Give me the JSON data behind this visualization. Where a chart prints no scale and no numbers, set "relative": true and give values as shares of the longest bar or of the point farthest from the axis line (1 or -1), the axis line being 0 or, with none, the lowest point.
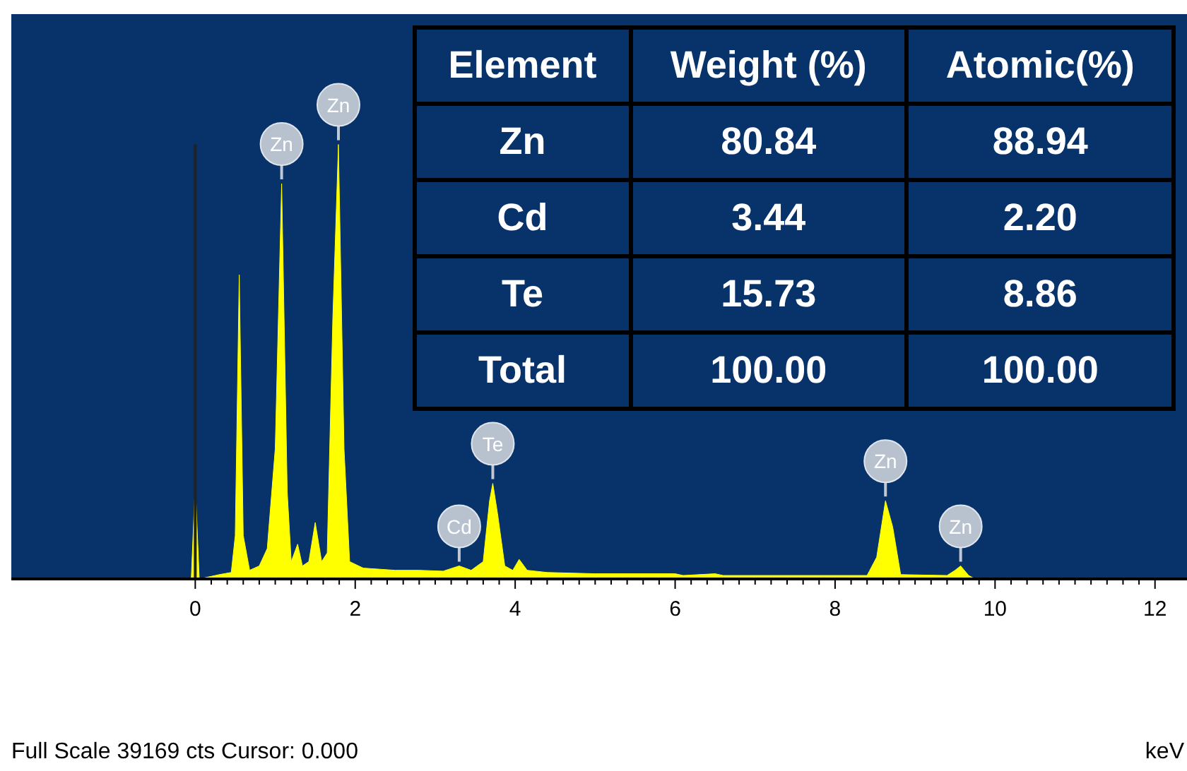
{
  "chart_data": [
    {
      "type": "area",
      "relative": true,
      "xlabel": "keV",
      "x": [
        -0.05,
        0,
        0.05,
        0.3,
        0.45,
        0.5,
        0.55,
        0.6,
        0.68,
        0.8,
        0.9,
        1.0,
        1.08,
        1.15,
        1.2,
        1.28,
        1.34,
        1.42,
        1.5,
        1.58,
        1.65,
        1.72,
        1.79,
        1.86,
        1.93,
        2.1,
        2.5,
        2.8,
        3.1,
        3.3,
        3.45,
        3.6,
        3.68,
        3.72,
        3.78,
        3.87,
        3.97,
        4.05,
        4.15,
        4.4,
        5.0,
        6.0,
        6.1,
        6.5,
        6.6,
        8.4,
        8.52,
        8.63,
        8.72,
        8.82,
        9.4,
        9.5,
        9.57,
        9.67,
        9.75
      ],
      "series": [
        {
          "color": "#ffff00",
          "values": [
            0,
            0.22,
            0,
            0.01,
            0.015,
            0.1,
            0.7,
            0.1,
            0.02,
            0.03,
            0.07,
            0.3,
            0.91,
            0.2,
            0.04,
            0.08,
            0.03,
            0.04,
            0.13,
            0.04,
            0.06,
            0.6,
            1.0,
            0.3,
            0.04,
            0.025,
            0.02,
            0.02,
            0.018,
            0.03,
            0.02,
            0.04,
            0.18,
            0.22,
            0.15,
            0.03,
            0.02,
            0.045,
            0.02,
            0.015,
            0.012,
            0.012,
            0.008,
            0.012,
            0.008,
            0.008,
            0.05,
            0.18,
            0.12,
            0.01,
            0.008,
            0.02,
            0.03,
            0.008,
            0
          ]
        }
      ],
      "xlim": [
        -2.3,
        12.4
      ],
      "xticks": [
        0,
        {
          "value": 0.2,
          "label": null
        },
        {
          "value": 0.4,
          "label": null
        },
        {
          "value": 0.6,
          "label": null
        },
        {
          "value": 0.8,
          "label": null
        },
        {
          "value": 1,
          "label": null
        },
        {
          "value": 1.2,
          "label": null
        },
        {
          "value": 1.4,
          "label": null
        },
        {
          "value": 1.6,
          "label": null
        },
        {
          "value": 1.8,
          "label": null
        },
        2,
        {
          "value": 2.2,
          "label": null
        },
        {
          "value": 2.4,
          "label": null
        },
        {
          "value": 2.6,
          "label": null
        },
        {
          "value": 2.8,
          "label": null
        },
        {
          "value": 3,
          "label": null
        },
        {
          "value": 3.2,
          "label": null
        },
        {
          "value": 3.4,
          "label": null
        },
        {
          "value": 3.6,
          "label": null
        },
        {
          "value": 3.8,
          "label": null
        },
        4,
        {
          "value": 4.2,
          "label": null
        },
        {
          "value": 4.4,
          "label": null
        },
        {
          "value": 4.6,
          "label": null
        },
        {
          "value": 4.8,
          "label": null
        },
        {
          "value": 5,
          "label": null
        },
        {
          "value": 5.2,
          "label": null
        },
        {
          "value": 5.4,
          "label": null
        },
        {
          "value": 5.6,
          "label": null
        },
        {
          "value": 5.8,
          "label": null
        },
        6,
        {
          "value": 6.2,
          "label": null
        },
        {
          "value": 6.4,
          "label": null
        },
        {
          "value": 6.6,
          "label": null
        },
        {
          "value": 6.8,
          "label": null
        },
        {
          "value": 7,
          "label": null
        },
        {
          "value": 7.2,
          "label": null
        },
        {
          "value": 7.4,
          "label": null
        },
        {
          "value": 7.6,
          "label": null
        },
        {
          "value": 7.8,
          "label": null
        },
        8,
        {
          "value": 8.2,
          "label": null
        },
        {
          "value": 8.4,
          "label": null
        },
        {
          "value": 8.6,
          "label": null
        },
        {
          "value": 8.8,
          "label": null
        },
        {
          "value": 9,
          "label": null
        },
        {
          "value": 9.2,
          "label": null
        },
        {
          "value": 9.4,
          "label": null
        },
        {
          "value": 9.6,
          "label": null
        },
        {
          "value": 9.8,
          "label": null
        },
        10,
        {
          "value": 10.2,
          "label": null
        },
        {
          "value": 10.4,
          "label": null
        },
        {
          "value": 10.6,
          "label": null
        },
        {
          "value": 10.8,
          "label": null
        },
        {
          "value": 11,
          "label": null
        },
        {
          "value": 11.2,
          "label": null
        },
        {
          "value": 11.4,
          "label": null
        },
        {
          "value": 11.6,
          "label": null
        },
        {
          "value": 11.8,
          "label": null
        },
        12
      ],
      "ref_lines": [
        {
          "axis": "x",
          "value": 0,
          "color": "#222222"
        }
      ],
      "annotations": [
        {
          "text": "Zn",
          "x": 1.08,
          "y": 0.91
        },
        {
          "text": "Zn",
          "x": 1.79,
          "y": 1.0
        },
        {
          "text": "Cd",
          "x": 3.3,
          "y": 0.03
        },
        {
          "text": "Te",
          "x": 3.72,
          "y": 0.22
        },
        {
          "text": "Zn",
          "x": 8.63,
          "y": 0.18
        },
        {
          "text": "Zn",
          "x": 9.57,
          "y": 0.03
        },
        "Full Scale 39169 cts Cursor: 0.000"
      ]
    },
    {
      "type": "other",
      "ylabel": "Element",
      "categories": [
        "Weight (%)",
        "Atomic(%)"
      ],
      "y_categories": [
        "Zn",
        "Cd",
        "Te",
        "Total"
      ],
      "cell_labels": [
        [
          "80.84",
          "88.94"
        ],
        [
          "3.44",
          "2.20"
        ],
        [
          "15.73",
          "8.86"
        ],
        [
          "100.00",
          "100.00"
        ]
      ]
    }
  ]
}
